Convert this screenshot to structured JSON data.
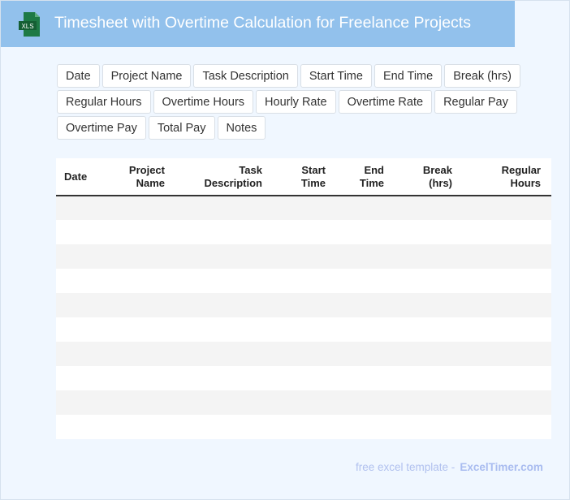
{
  "header": {
    "title": "Timesheet with Overtime Calculation for Freelance Projects",
    "icon": "xls-file-icon",
    "icon_label": "XLS",
    "banner_color": "#92c1ec"
  },
  "fields": [
    "Date",
    "Project Name",
    "Task Description",
    "Start Time",
    "End Time",
    "Break (hrs)",
    "Regular Hours",
    "Overtime Hours",
    "Hourly Rate",
    "Overtime Rate",
    "Regular Pay",
    "Overtime Pay",
    "Total Pay",
    "Notes"
  ],
  "table": {
    "columns": [
      [
        "Date",
        ""
      ],
      [
        "Project",
        "Name"
      ],
      [
        "Task",
        "Description"
      ],
      [
        "Start",
        "Time"
      ],
      [
        "End",
        "Time"
      ],
      [
        "Break",
        "(hrs)"
      ],
      [
        "Regular",
        "Hours"
      ]
    ],
    "row_count": 10
  },
  "footer": {
    "text": "free excel template -",
    "brand": "ExcelTimer.com"
  }
}
